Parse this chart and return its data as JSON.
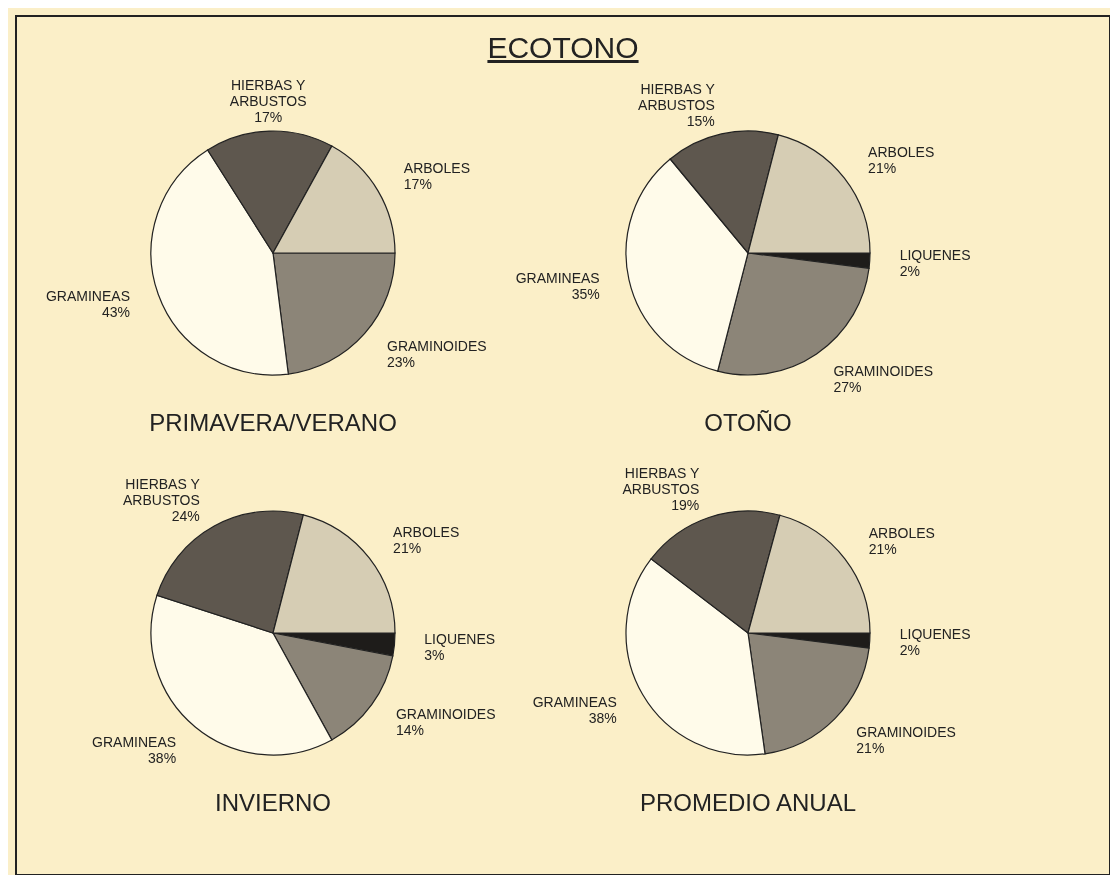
{
  "chart_data": [
    {
      "type": "pie",
      "title": "PRIMAVERA/VERANO",
      "annotations": [
        "ECOTONO"
      ],
      "categories": [
        "GRAMINOIDES",
        "GRAMINEAS",
        "HIERBAS Y ARBUSTOS",
        "ARBOLES"
      ],
      "values": [
        23,
        43,
        17,
        17
      ],
      "value_labels": [
        "23%",
        "43%",
        "17%",
        "17%"
      ],
      "colors": [
        "#8c8578",
        "#fffbea",
        "#5e574e",
        "#d6cdb4"
      ]
    },
    {
      "type": "pie",
      "title": "OTOÑO",
      "categories": [
        "LIQUENES",
        "GRAMINOIDES",
        "GRAMINEAS",
        "HIERBAS Y ARBUSTOS",
        "ARBOLES"
      ],
      "values": [
        2,
        27,
        35,
        15,
        21
      ],
      "value_labels": [
        "2%",
        "27%",
        "35%",
        "15%",
        "21%"
      ],
      "colors": [
        "#1e1c1a",
        "#8c8578",
        "#fffbea",
        "#5e574e",
        "#d6cdb4"
      ]
    },
    {
      "type": "pie",
      "title": "INVIERNO",
      "categories": [
        "LIQUENES",
        "GRAMINOIDES",
        "GRAMINEAS",
        "HIERBAS Y ARBUSTOS",
        "ARBOLES"
      ],
      "values": [
        3,
        14,
        38,
        24,
        21
      ],
      "value_labels": [
        "3%",
        "14%",
        "38%",
        "24%",
        "21%"
      ],
      "colors": [
        "#1e1c1a",
        "#8c8578",
        "#fffbea",
        "#5e574e",
        "#d6cdb4"
      ]
    },
    {
      "type": "pie",
      "title": "PROMEDIO ANUAL",
      "categories": [
        "LIQUENES",
        "GRAMINOIDES",
        "GRAMINEAS",
        "HIERBAS Y ARBUSTOS",
        "ARBOLES"
      ],
      "values": [
        2,
        21,
        38,
        19,
        21
      ],
      "value_labels": [
        "2%",
        "21%",
        "38%",
        "19%",
        "21%"
      ],
      "colors": [
        "#1e1c1a",
        "#8c8578",
        "#fffbea",
        "#5e574e",
        "#d6cdb4"
      ]
    }
  ]
}
